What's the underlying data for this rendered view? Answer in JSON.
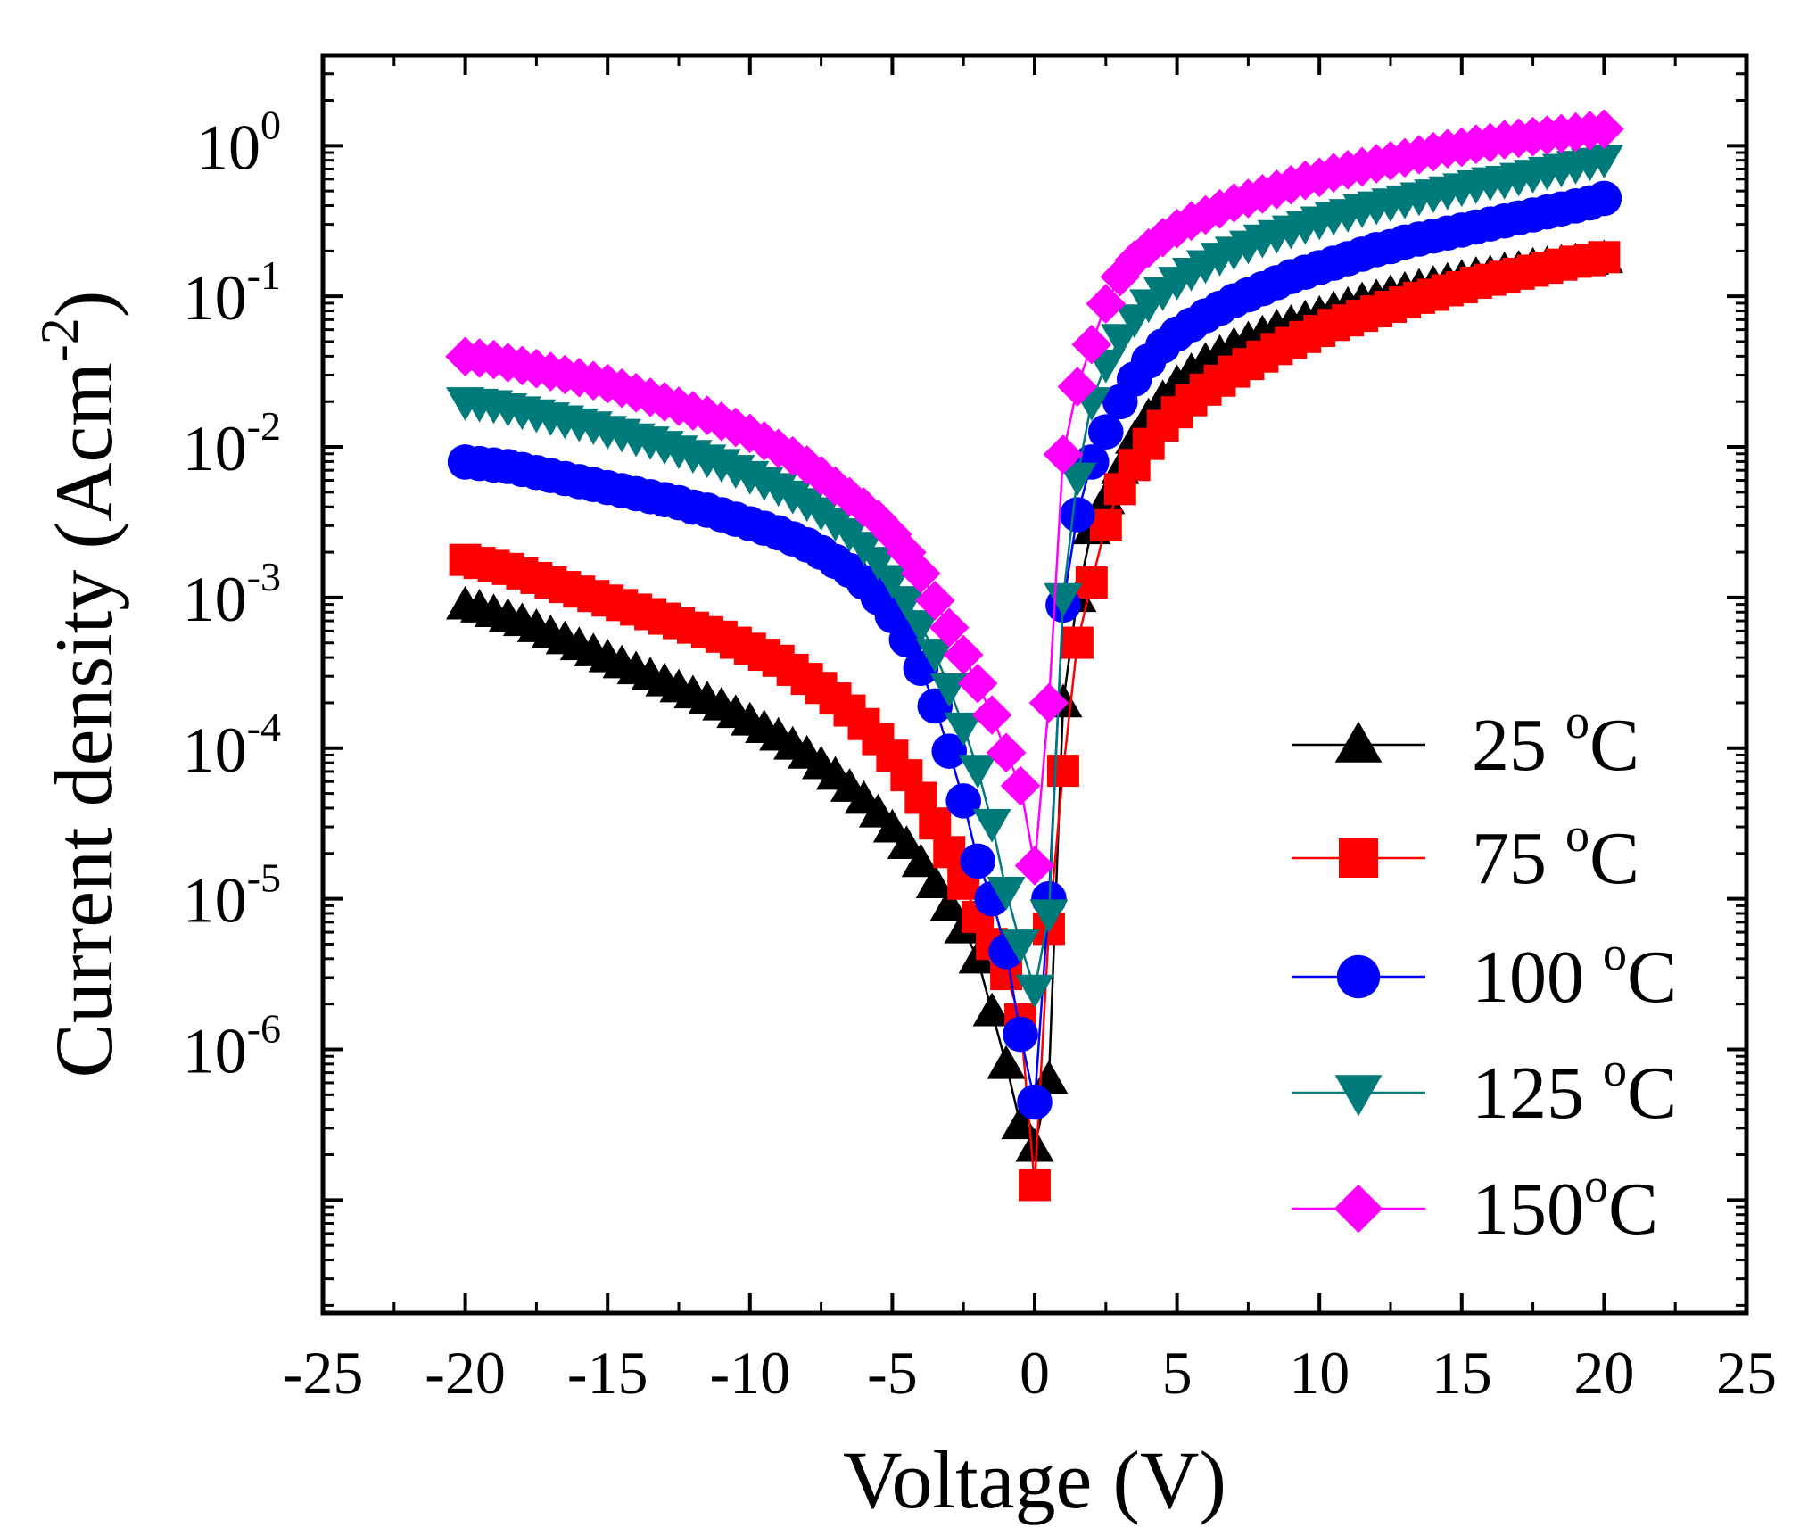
{
  "chart_data": {
    "type": "scatter",
    "title": "",
    "xlabel": "Voltage (V)",
    "ylabel": {
      "base": "Current density (Acm",
      "sup": "-2",
      "close": ")"
    },
    "xlim": [
      -25,
      25
    ],
    "ylog_exp_lim": [
      -7.75,
      0.6
    ],
    "x_ticks": [
      "-25",
      "-20",
      "-15",
      "-10",
      "-5",
      "0",
      "5",
      "10",
      "15",
      "20",
      "25"
    ],
    "y_ticks": [
      {
        "base": "10",
        "exp": "0"
      },
      {
        "base": "10",
        "exp": "-1"
      },
      {
        "base": "10",
        "exp": "-2"
      },
      {
        "base": "10",
        "exp": "-3"
      },
      {
        "base": "10",
        "exp": "-4"
      },
      {
        "base": "10",
        "exp": "-5"
      },
      {
        "base": "10",
        "exp": "-6"
      }
    ],
    "legend_position": "bottom-right",
    "x": [
      -20,
      -19.5,
      -19,
      -18.5,
      -18,
      -17.5,
      -17,
      -16.5,
      -16,
      -15.5,
      -15,
      -14.5,
      -14,
      -13.5,
      -13,
      -12.5,
      -12,
      -11.5,
      -11,
      -10.5,
      -10,
      -9.5,
      -9,
      -8.5,
      -8,
      -7.5,
      -7,
      -6.5,
      -6,
      -5.5,
      -5,
      -4.5,
      -4,
      -3.5,
      -3,
      -2.5,
      -2,
      -1.5,
      -1,
      -0.5,
      0,
      0.5,
      1,
      1.5,
      2,
      2.5,
      3,
      3.5,
      4,
      4.5,
      5,
      5.5,
      6,
      6.5,
      7,
      7.5,
      8,
      8.5,
      9,
      9.5,
      10,
      10.5,
      11,
      11.5,
      12,
      12.5,
      13,
      13.5,
      14,
      14.5,
      15,
      15.5,
      16,
      16.5,
      17,
      17.5,
      18,
      18.5,
      19,
      19.5,
      20
    ],
    "series": [
      {
        "name": "25 °C",
        "label_num": "25 ",
        "label_sup": "o",
        "label_unit": "C",
        "color": "#000000",
        "marker": "triangle-up",
        "log10_values": [
          -3.05,
          -3.07,
          -3.1,
          -3.13,
          -3.16,
          -3.2,
          -3.24,
          -3.28,
          -3.32,
          -3.36,
          -3.4,
          -3.44,
          -3.48,
          -3.52,
          -3.56,
          -3.6,
          -3.64,
          -3.68,
          -3.72,
          -3.77,
          -3.82,
          -3.87,
          -3.92,
          -3.98,
          -4.04,
          -4.11,
          -4.18,
          -4.26,
          -4.34,
          -4.43,
          -4.53,
          -4.64,
          -4.76,
          -4.9,
          -5.05,
          -5.2,
          -5.4,
          -5.75,
          -6.1,
          -6.5,
          -6.65,
          -6.2,
          -3.7,
          -3.0,
          -2.55,
          -2.35,
          -2.15,
          -1.95,
          -1.8,
          -1.68,
          -1.58,
          -1.5,
          -1.43,
          -1.38,
          -1.33,
          -1.29,
          -1.25,
          -1.21,
          -1.18,
          -1.15,
          -1.12,
          -1.09,
          -1.06,
          -1.03,
          -1.01,
          -0.98,
          -0.96,
          -0.94,
          -0.92,
          -0.9,
          -0.88,
          -0.86,
          -0.85,
          -0.83,
          -0.82,
          -0.8,
          -0.79,
          -0.78,
          -0.77,
          -0.76,
          -0.75
        ]
      },
      {
        "name": "75 °C",
        "label_num": "75 ",
        "label_sup": "o",
        "label_unit": "C",
        "color": "#ff0000",
        "marker": "square",
        "log10_values": [
          -2.75,
          -2.77,
          -2.79,
          -2.81,
          -2.84,
          -2.87,
          -2.9,
          -2.93,
          -2.96,
          -2.99,
          -3.02,
          -3.05,
          -3.08,
          -3.11,
          -3.14,
          -3.17,
          -3.2,
          -3.23,
          -3.26,
          -3.3,
          -3.34,
          -3.38,
          -3.42,
          -3.48,
          -3.54,
          -3.6,
          -3.67,
          -3.75,
          -3.84,
          -3.94,
          -4.05,
          -4.18,
          -4.33,
          -4.5,
          -4.69,
          -4.9,
          -5.12,
          -5.3,
          -5.5,
          -5.8,
          -6.9,
          -5.2,
          -4.15,
          -3.3,
          -2.9,
          -2.52,
          -2.28,
          -2.12,
          -1.98,
          -1.86,
          -1.77,
          -1.69,
          -1.62,
          -1.56,
          -1.5,
          -1.45,
          -1.4,
          -1.35,
          -1.31,
          -1.27,
          -1.23,
          -1.19,
          -1.16,
          -1.13,
          -1.1,
          -1.07,
          -1.04,
          -1.01,
          -0.99,
          -0.96,
          -0.94,
          -0.91,
          -0.89,
          -0.87,
          -0.85,
          -0.83,
          -0.81,
          -0.79,
          -0.77,
          -0.76,
          -0.74
        ]
      },
      {
        "name": "100 °C",
        "label_num": "100 ",
        "label_sup": "o",
        "label_unit": "C",
        "color": "#0000ff",
        "marker": "circle",
        "log10_values": [
          -2.1,
          -2.11,
          -2.12,
          -2.13,
          -2.15,
          -2.17,
          -2.19,
          -2.21,
          -2.23,
          -2.25,
          -2.27,
          -2.29,
          -2.31,
          -2.33,
          -2.35,
          -2.37,
          -2.4,
          -2.42,
          -2.45,
          -2.48,
          -2.51,
          -2.54,
          -2.57,
          -2.61,
          -2.65,
          -2.7,
          -2.76,
          -2.82,
          -2.9,
          -3.0,
          -3.12,
          -3.28,
          -3.47,
          -3.72,
          -4.02,
          -4.35,
          -4.75,
          -5.0,
          -5.35,
          -5.9,
          -6.35,
          -5.0,
          -3.05,
          -2.45,
          -2.1,
          -1.9,
          -1.7,
          -1.55,
          -1.43,
          -1.33,
          -1.25,
          -1.19,
          -1.13,
          -1.08,
          -1.03,
          -0.99,
          -0.95,
          -0.91,
          -0.87,
          -0.84,
          -0.81,
          -0.78,
          -0.75,
          -0.72,
          -0.69,
          -0.67,
          -0.64,
          -0.62,
          -0.6,
          -0.58,
          -0.56,
          -0.54,
          -0.52,
          -0.5,
          -0.48,
          -0.46,
          -0.44,
          -0.42,
          -0.4,
          -0.38,
          -0.35
        ]
      },
      {
        "name": "125 °C",
        "label_num": "125 ",
        "label_sup": "o",
        "label_unit": "C",
        "color": "#007b7b",
        "marker": "triangle-down",
        "log10_values": [
          -1.7,
          -1.71,
          -1.72,
          -1.74,
          -1.76,
          -1.78,
          -1.8,
          -1.82,
          -1.84,
          -1.86,
          -1.89,
          -1.91,
          -1.94,
          -1.96,
          -1.99,
          -2.02,
          -2.05,
          -2.08,
          -2.11,
          -2.15,
          -2.19,
          -2.23,
          -2.27,
          -2.32,
          -2.37,
          -2.43,
          -2.5,
          -2.57,
          -2.66,
          -2.76,
          -2.88,
          -3.02,
          -3.18,
          -3.37,
          -3.6,
          -3.86,
          -4.14,
          -4.5,
          -4.95,
          -5.3,
          -5.6,
          -5.1,
          -3.0,
          -2.2,
          -1.7,
          -1.45,
          -1.28,
          -1.15,
          -1.05,
          -0.97,
          -0.9,
          -0.84,
          -0.79,
          -0.74,
          -0.7,
          -0.66,
          -0.62,
          -0.59,
          -0.56,
          -0.53,
          -0.5,
          -0.47,
          -0.45,
          -0.42,
          -0.4,
          -0.38,
          -0.36,
          -0.34,
          -0.32,
          -0.3,
          -0.28,
          -0.26,
          -0.24,
          -0.23,
          -0.21,
          -0.19,
          -0.17,
          -0.15,
          -0.13,
          -0.11,
          -0.09
        ]
      },
      {
        "name": "150°C",
        "label_num": "150",
        "label_sup": "o",
        "label_unit": "C",
        "color": "#ff00ff",
        "marker": "diamond",
        "log10_values": [
          -1.4,
          -1.41,
          -1.42,
          -1.44,
          -1.46,
          -1.48,
          -1.5,
          -1.52,
          -1.54,
          -1.56,
          -1.58,
          -1.61,
          -1.64,
          -1.67,
          -1.7,
          -1.73,
          -1.76,
          -1.79,
          -1.83,
          -1.87,
          -1.91,
          -1.96,
          -2.01,
          -2.06,
          -2.12,
          -2.19,
          -2.26,
          -2.33,
          -2.4,
          -2.48,
          -2.58,
          -2.7,
          -2.84,
          -3.02,
          -3.2,
          -3.38,
          -3.57,
          -3.78,
          -4.03,
          -4.25,
          -4.78,
          -3.7,
          -2.05,
          -1.6,
          -1.32,
          -1.05,
          -0.87,
          -0.76,
          -0.68,
          -0.61,
          -0.55,
          -0.5,
          -0.46,
          -0.42,
          -0.38,
          -0.35,
          -0.32,
          -0.29,
          -0.26,
          -0.23,
          -0.21,
          -0.18,
          -0.16,
          -0.14,
          -0.12,
          -0.1,
          -0.08,
          -0.06,
          -0.04,
          -0.02,
          -0.01,
          0.01,
          0.02,
          0.04,
          0.05,
          0.06,
          0.07,
          0.08,
          0.09,
          0.1,
          0.11
        ]
      }
    ]
  }
}
